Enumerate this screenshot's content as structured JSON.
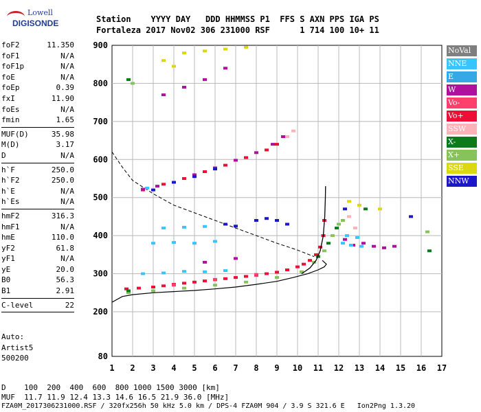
{
  "logo": {
    "top": "Lowell",
    "bottom": "DIGISONDE"
  },
  "header": {
    "row1": "Station    YYYY DAY   DDD HHMMSS P1  FFS S AXN PPS IGA PS",
    "row2": "Fortaleza 2017 Nov02 306 231000 RSF      1 714 100 10+ 11"
  },
  "params": [
    {
      "name": "foF2",
      "value": "11.350"
    },
    {
      "name": "foF1",
      "value": "N/A"
    },
    {
      "name": "foF1p",
      "value": "N/A"
    },
    {
      "name": "foE",
      "value": "N/A"
    },
    {
      "name": "foEp",
      "value": "0.39"
    },
    {
      "name": "fxI",
      "value": "11.90"
    },
    {
      "name": "foEs",
      "value": "N/A"
    },
    {
      "name": "fmin",
      "value": "1.65"
    },
    {
      "sep": true
    },
    {
      "name": "MUF(D)",
      "value": "35.98"
    },
    {
      "name": "M(D)",
      "value": "3.17"
    },
    {
      "name": "D",
      "value": "N/A"
    },
    {
      "sep": true
    },
    {
      "name": "h`F",
      "value": "250.0"
    },
    {
      "name": "h`F2",
      "value": "250.0"
    },
    {
      "name": "h`E",
      "value": "N/A"
    },
    {
      "name": "h`Es",
      "value": "N/A"
    },
    {
      "sep": true
    },
    {
      "name": "hmF2",
      "value": "316.3"
    },
    {
      "name": "hmF1",
      "value": "N/A"
    },
    {
      "name": "hmE",
      "value": "110.0"
    },
    {
      "name": "yF2",
      "value": "61.8"
    },
    {
      "name": "yF1",
      "value": "N/A"
    },
    {
      "name": "yE",
      "value": "20.0"
    },
    {
      "name": "B0",
      "value": "56.3"
    },
    {
      "name": "B1",
      "value": "2.91"
    },
    {
      "sep": true
    },
    {
      "name": "C-level",
      "value": "22"
    },
    {
      "sep": true
    }
  ],
  "artist": {
    "line1": "Auto:",
    "line2": "Artist5",
    "line3": "500200"
  },
  "footer": {
    "d_row": "D    100  200  400  600  800 1000 1500 3000 [km]",
    "muf_row": "MUF  11.7 11.9 12.4 13.3 14.6 16.5 21.9 36.0 [MHz]",
    "info_row": "FZA0M_2017306231000.RSF / 320fx256h 50 kHz 5.0 km / DPS-4 FZA0M 904 / 3.9 S 321.6 E   Ion2Png 1.3.20"
  },
  "legend": [
    {
      "label": "NoVal",
      "color": "#7f7f7f"
    },
    {
      "label": "NNE",
      "color": "#38c4ff"
    },
    {
      "label": "E",
      "color": "#36a8e6"
    },
    {
      "label": "W",
      "color": "#b0109e"
    },
    {
      "label": "Vo-",
      "color": "#ff3f6c"
    },
    {
      "label": "Vo+",
      "color": "#ee0f36"
    },
    {
      "label": "SSW",
      "color": "#fcb3b8"
    },
    {
      "label": "X-",
      "color": "#0b7a1a"
    },
    {
      "label": "X+",
      "color": "#86c45b"
    },
    {
      "label": "SSE",
      "color": "#dcd80f"
    },
    {
      "label": "NNW",
      "color": "#1c18c8"
    }
  ],
  "chart_data": {
    "type": "scatter",
    "xlim": [
      1,
      17
    ],
    "ylim": [
      80,
      900
    ],
    "x_ticks": [
      "1",
      "2",
      "3",
      "4",
      "5",
      "6",
      "7",
      "8",
      "9",
      "10",
      "11",
      "12",
      "13",
      "14",
      "15",
      "16",
      "17"
    ],
    "y_ticks": [
      "80",
      "200",
      "300",
      "400",
      "500",
      "600",
      "700",
      "800",
      "900"
    ],
    "grid": true,
    "series": [
      {
        "name": "Vo+",
        "color": "#ee0f36",
        "points": [
          [
            1.7,
            260
          ],
          [
            2.3,
            262
          ],
          [
            3.0,
            265
          ],
          [
            3.5,
            268
          ],
          [
            4.0,
            272
          ],
          [
            4.5,
            275
          ],
          [
            5.0,
            278
          ],
          [
            5.5,
            281
          ],
          [
            6.0,
            284
          ],
          [
            6.5,
            287
          ],
          [
            7.0,
            290
          ],
          [
            7.5,
            293
          ],
          [
            8.0,
            296
          ],
          [
            8.5,
            300
          ],
          [
            9.0,
            304
          ],
          [
            9.5,
            310
          ],
          [
            10.0,
            318
          ],
          [
            10.3,
            325
          ],
          [
            10.6,
            335
          ],
          [
            10.9,
            350
          ],
          [
            11.1,
            370
          ],
          [
            11.25,
            400
          ],
          [
            11.3,
            440
          ],
          [
            2.5,
            520
          ],
          [
            3.5,
            535
          ],
          [
            4.5,
            550
          ],
          [
            5.5,
            568
          ],
          [
            6.5,
            585
          ],
          [
            7.5,
            605
          ],
          [
            8.5,
            625
          ],
          [
            9.0,
            640
          ]
        ]
      },
      {
        "name": "W",
        "color": "#b0109e",
        "points": [
          [
            2.5,
            522
          ],
          [
            3.2,
            530
          ],
          [
            4.0,
            540
          ],
          [
            5.0,
            560
          ],
          [
            6.0,
            578
          ],
          [
            7.0,
            598
          ],
          [
            8.0,
            618
          ],
          [
            8.8,
            640
          ],
          [
            9.3,
            660
          ],
          [
            3.5,
            770
          ],
          [
            4.5,
            790
          ],
          [
            5.5,
            810
          ],
          [
            6.5,
            840
          ],
          [
            12.3,
            390
          ],
          [
            12.7,
            375
          ],
          [
            13.2,
            380
          ],
          [
            13.7,
            372
          ],
          [
            14.2,
            368
          ],
          [
            14.7,
            372
          ],
          [
            7.0,
            340
          ],
          [
            5.5,
            330
          ]
        ]
      },
      {
        "name": "NNE",
        "color": "#38c4ff",
        "points": [
          [
            2.5,
            300
          ],
          [
            3.5,
            302
          ],
          [
            4.5,
            306
          ],
          [
            5.5,
            305
          ],
          [
            6.5,
            308
          ],
          [
            3.0,
            380
          ],
          [
            4.0,
            382
          ],
          [
            5.0,
            380
          ],
          [
            6.0,
            385
          ],
          [
            3.5,
            420
          ],
          [
            4.5,
            422
          ],
          [
            5.5,
            424
          ],
          [
            12.2,
            380
          ],
          [
            12.6,
            375
          ],
          [
            13.1,
            372
          ],
          [
            12.4,
            400
          ],
          [
            12.9,
            395
          ],
          [
            2.7,
            525
          ]
        ]
      },
      {
        "name": "X+",
        "color": "#86c45b",
        "points": [
          [
            1.8,
            250
          ],
          [
            3.0,
            255
          ],
          [
            4.5,
            262
          ],
          [
            6.0,
            270
          ],
          [
            7.5,
            278
          ],
          [
            9.0,
            290
          ],
          [
            10.2,
            305
          ],
          [
            10.8,
            330
          ],
          [
            11.3,
            360
          ],
          [
            11.7,
            400
          ],
          [
            12.0,
            430
          ],
          [
            2.0,
            800
          ],
          [
            12.2,
            440
          ],
          [
            16.3,
            410
          ]
        ]
      },
      {
        "name": "X-",
        "color": "#0b7a1a",
        "points": [
          [
            1.8,
            255
          ],
          [
            11.0,
            345
          ],
          [
            11.5,
            380
          ],
          [
            11.9,
            420
          ],
          [
            13.3,
            470
          ],
          [
            16.4,
            360
          ],
          [
            1.8,
            810
          ]
        ]
      },
      {
        "name": "SSE",
        "color": "#dcd80f",
        "points": [
          [
            4.5,
            880
          ],
          [
            5.5,
            885
          ],
          [
            6.5,
            890
          ],
          [
            7.5,
            895
          ],
          [
            3.5,
            860
          ],
          [
            4.0,
            845
          ],
          [
            12.5,
            490
          ],
          [
            13.0,
            480
          ],
          [
            14.0,
            470
          ]
        ]
      },
      {
        "name": "NNW",
        "color": "#1c18c8",
        "points": [
          [
            3.0,
            520
          ],
          [
            4.0,
            540
          ],
          [
            5.0,
            555
          ],
          [
            6.0,
            575
          ],
          [
            8.0,
            440
          ],
          [
            8.5,
            445
          ],
          [
            9.0,
            440
          ],
          [
            9.5,
            430
          ],
          [
            6.5,
            430
          ],
          [
            7.0,
            425
          ],
          [
            15.5,
            450
          ],
          [
            12.3,
            470
          ]
        ]
      },
      {
        "name": "SSW",
        "color": "#fcb3b8",
        "points": [
          [
            9.5,
            660
          ],
          [
            9.8,
            675
          ],
          [
            12.5,
            450
          ],
          [
            12.8,
            420
          ]
        ]
      },
      {
        "name": "Vo-",
        "color": "#ff3f6c",
        "points": [
          [
            4.0,
            270
          ],
          [
            6.0,
            285
          ],
          [
            8.0,
            298
          ]
        ]
      }
    ],
    "profile_curve": [
      [
        1.0,
        225
      ],
      [
        1.5,
        240
      ],
      [
        2.0,
        245
      ],
      [
        3.0,
        250
      ],
      [
        4.0,
        253
      ],
      [
        5.0,
        256
      ],
      [
        6.0,
        260
      ],
      [
        7.0,
        265
      ],
      [
        8.0,
        272
      ],
      [
        9.0,
        280
      ],
      [
        9.8,
        290
      ],
      [
        10.5,
        300
      ],
      [
        11.0,
        310
      ],
      [
        11.3,
        318
      ],
      [
        11.4,
        325
      ],
      [
        11.2,
        335
      ]
    ],
    "sharp_curve": [
      [
        10.2,
        300
      ],
      [
        10.6,
        315
      ],
      [
        10.9,
        335
      ],
      [
        11.1,
        360
      ],
      [
        11.25,
        400
      ],
      [
        11.32,
        450
      ],
      [
        11.35,
        500
      ],
      [
        11.36,
        530
      ]
    ],
    "muf_curve": [
      [
        1.0,
        620
      ],
      [
        1.5,
        580
      ],
      [
        2.0,
        545
      ],
      [
        3.0,
        510
      ],
      [
        4.0,
        480
      ],
      [
        5.0,
        460
      ],
      [
        6.0,
        440
      ],
      [
        7.0,
        420
      ],
      [
        8.0,
        400
      ],
      [
        9.0,
        380
      ],
      [
        10.0,
        362
      ],
      [
        10.8,
        345
      ]
    ]
  }
}
